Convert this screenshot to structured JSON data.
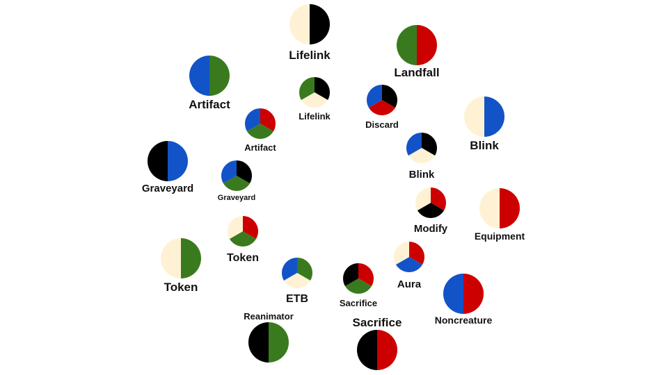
{
  "colors": {
    "W": "#fff2d4",
    "U": "#1353c8",
    "B": "#000000",
    "R": "#cc0000",
    "G": "#3a7a1e"
  },
  "nodes": [
    {
      "id": "lifelink-wb",
      "label": "Lifelink",
      "colors": [
        "W",
        "B"
      ]
    },
    {
      "id": "landfall-gr",
      "label": "Landfall",
      "colors": [
        "G",
        "R"
      ]
    },
    {
      "id": "artifact-ug",
      "label": "Artifact",
      "colors": [
        "U",
        "G"
      ]
    },
    {
      "id": "lifelink-bwg",
      "label": "Lifelink",
      "colors": [
        "B",
        "W",
        "G"
      ]
    },
    {
      "id": "discard-bru",
      "label": "Discard",
      "colors": [
        "B",
        "R",
        "U"
      ]
    },
    {
      "id": "blink-wu",
      "label": "Blink",
      "colors": [
        "W",
        "U"
      ]
    },
    {
      "id": "artifact-rgu",
      "label": "Artifact",
      "colors": [
        "R",
        "G",
        "U"
      ]
    },
    {
      "id": "blink-bwu",
      "label": "Blink",
      "colors": [
        "B",
        "W",
        "U"
      ]
    },
    {
      "id": "graveyard-bu",
      "label": "Graveyard",
      "colors": [
        "B",
        "U"
      ]
    },
    {
      "id": "graveyard-bgu",
      "label": "Graveyard",
      "colors": [
        "B",
        "G",
        "U"
      ]
    },
    {
      "id": "modify-rbw",
      "label": "Modify",
      "colors": [
        "R",
        "B",
        "W"
      ]
    },
    {
      "id": "equipment-wr",
      "label": "Equipment",
      "colors": [
        "W",
        "R"
      ]
    },
    {
      "id": "token-rgw",
      "label": "Token",
      "colors": [
        "R",
        "G",
        "W"
      ]
    },
    {
      "id": "token-wg",
      "label": "Token",
      "colors": [
        "W",
        "G"
      ]
    },
    {
      "id": "aura-ruw",
      "label": "Aura",
      "colors": [
        "R",
        "U",
        "W"
      ]
    },
    {
      "id": "etb-gwu",
      "label": "ETB",
      "colors": [
        "G",
        "W",
        "U"
      ]
    },
    {
      "id": "sacrifice-rgb",
      "label": "Sacrifice",
      "colors": [
        "R",
        "G",
        "B"
      ]
    },
    {
      "id": "noncreature-ur",
      "label": "Noncreature",
      "colors": [
        "U",
        "R"
      ]
    },
    {
      "id": "reanimator-bg",
      "label": "Reanimator",
      "colors": [
        "B",
        "G"
      ]
    },
    {
      "id": "sacrifice-br",
      "label": "Sacrifice",
      "colors": [
        "B",
        "R"
      ]
    }
  ]
}
